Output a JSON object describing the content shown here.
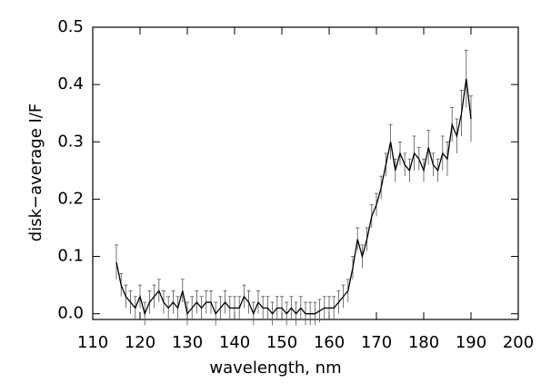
{
  "chart_data": {
    "type": "errorbar-line",
    "xlabel": "wavelength, nm",
    "ylabel": "disk−average I/F",
    "color": "#000000",
    "xlim": [
      110,
      200
    ],
    "ylim": [
      -0.01,
      0.5
    ],
    "xticks": [
      110,
      120,
      130,
      140,
      150,
      160,
      170,
      180,
      190,
      200
    ],
    "yticks": [
      {
        "value": 0,
        "label": "0.0"
      },
      0.1,
      0.2,
      0.3,
      0.4,
      0.5
    ],
    "x": [
      115,
      116,
      117,
      118,
      119,
      120,
      121,
      122,
      123,
      124,
      125,
      126,
      127,
      128,
      129,
      130,
      131,
      132,
      133,
      134,
      135,
      136,
      137,
      138,
      139,
      140,
      141,
      142,
      143,
      144,
      145,
      146,
      147,
      148,
      149,
      150,
      151,
      152,
      153,
      154,
      155,
      156,
      157,
      158,
      159,
      160,
      161,
      162,
      163,
      164,
      165,
      166,
      167,
      168,
      169,
      170,
      171,
      172,
      173,
      174,
      175,
      176,
      177,
      178,
      179,
      180,
      181,
      182,
      183,
      184,
      185,
      186,
      187,
      188,
      189,
      190
    ],
    "values": [
      0.09,
      0.05,
      0.03,
      0.02,
      0.01,
      0.03,
      0.0,
      0.02,
      0.03,
      0.04,
      0.02,
      0.01,
      0.02,
      0.01,
      0.04,
      0.0,
      0.01,
      0.02,
      0.01,
      0.02,
      0.02,
      0.0,
      0.01,
      0.02,
      0.01,
      0.01,
      0.01,
      0.03,
      0.02,
      0.0,
      0.02,
      0.01,
      0.01,
      0.0,
      0.01,
      0.01,
      0.0,
      0.01,
      0.0,
      0.01,
      0.0,
      0.0,
      0.0,
      0.005,
      0.01,
      0.01,
      0.01,
      0.02,
      0.03,
      0.04,
      0.08,
      0.13,
      0.1,
      0.13,
      0.17,
      0.19,
      0.22,
      0.26,
      0.3,
      0.25,
      0.28,
      0.26,
      0.25,
      0.28,
      0.27,
      0.25,
      0.29,
      0.26,
      0.25,
      0.28,
      0.27,
      0.33,
      0.31,
      0.35,
      0.41,
      0.34
    ],
    "errors": [
      0.03,
      0.02,
      0.02,
      0.02,
      0.02,
      0.02,
      0.02,
      0.02,
      0.02,
      0.02,
      0.02,
      0.02,
      0.02,
      0.02,
      0.02,
      0.02,
      0.02,
      0.02,
      0.02,
      0.02,
      0.02,
      0.02,
      0.02,
      0.02,
      0.02,
      0.02,
      0.02,
      0.02,
      0.02,
      0.02,
      0.02,
      0.02,
      0.02,
      0.02,
      0.02,
      0.02,
      0.02,
      0.02,
      0.02,
      0.02,
      0.02,
      0.02,
      0.02,
      0.02,
      0.02,
      0.02,
      0.02,
      0.02,
      0.02,
      0.02,
      0.02,
      0.02,
      0.02,
      0.02,
      0.02,
      0.02,
      0.02,
      0.02,
      0.03,
      0.02,
      0.02,
      0.02,
      0.02,
      0.03,
      0.02,
      0.02,
      0.03,
      0.02,
      0.02,
      0.03,
      0.03,
      0.03,
      0.03,
      0.04,
      0.05,
      0.04
    ]
  }
}
